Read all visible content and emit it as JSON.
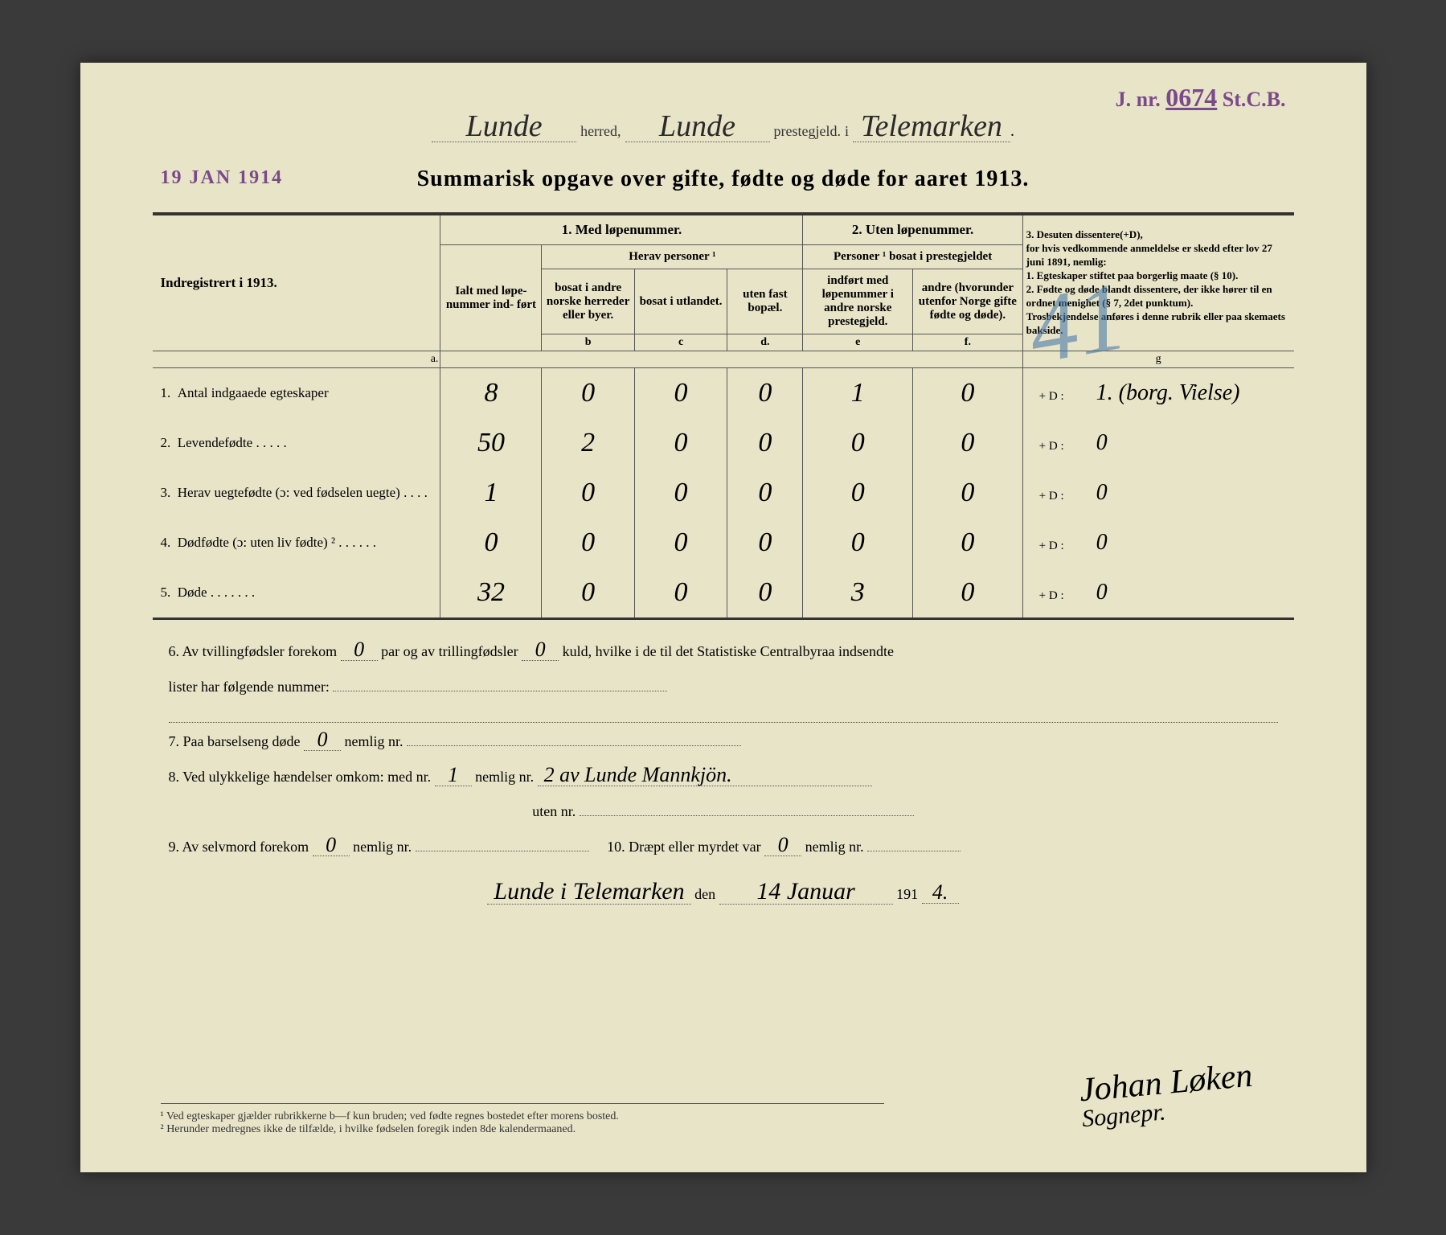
{
  "stamps": {
    "date": "19 JAN 1914",
    "jnr_label": "J. nr.",
    "jnr_num": "0674",
    "jnr_suffix": "St.C.B."
  },
  "header": {
    "herred": "Lunde",
    "herred_label": "herred,",
    "prestegjeld": "Lunde",
    "prestegjeld_label": "prestegjeld.",
    "i_label": "i",
    "amt": "Telemarken"
  },
  "title": "Summarisk opgave over gifte, fødte og døde for aaret 1913.",
  "table": {
    "left_header": "Indregistrert i 1913.",
    "group1": "1. Med løpenummer.",
    "group2": "2. Uten løpenummer.",
    "group3_title": "3. Desuten dissentere(+D),",
    "group3_text": "for hvis vedkommende anmeldelse er skedd efter lov 27 juni 1891, nemlig:\n1. Egteskaper stiftet paa borgerlig maate (§ 10).\n2. Fødte og døde blandt dissentere, der ikke hører til en ordnet menighet (§ 7, 2det punktum).\nTrosbekjendelse anføres i denne rubrik eller paa skemaets bakside.",
    "ialt_header": "Ialt\nmed løpe-\nnummer ind-\nført",
    "herav_header": "Herav personer ¹",
    "col_b": "bosat i andre norske herreder eller byer.",
    "col_c": "bosat i utlandet.",
    "col_d": "uten fast bopæl.",
    "personer_header": "Personer ¹\nbosat i prestegjeldet",
    "col_e": "indført med løpenummer i andre norske prestegjeld.",
    "col_f": "andre (hvorunder utenfor Norge gifte fødte og døde).",
    "letters": {
      "a": "a.",
      "b": "b",
      "c": "c",
      "d": "d.",
      "e": "e",
      "f": "f.",
      "g": "g"
    },
    "rows": [
      {
        "num": "1.",
        "label": "Antal indgaaede egteskaper",
        "a": "8",
        "b": "0",
        "c": "0",
        "d": "0",
        "e": "1",
        "f": "0",
        "g": "1. (borg. Vielse)"
      },
      {
        "num": "2.",
        "label": "Levendefødte . . . . .",
        "a": "50",
        "b": "2",
        "c": "0",
        "d": "0",
        "e": "0",
        "f": "0",
        "g": "0"
      },
      {
        "num": "3.",
        "label": "Herav uegtefødte (ɔ: ved fødselen uegte) . . . .",
        "a": "1",
        "b": "0",
        "c": "0",
        "d": "0",
        "e": "0",
        "f": "0",
        "g": "0"
      },
      {
        "num": "4.",
        "label": "Dødfødte (ɔ: uten liv fødte) ² . . . . . .",
        "a": "0",
        "b": "0",
        "c": "0",
        "d": "0",
        "e": "0",
        "f": "0",
        "g": "0"
      },
      {
        "num": "5.",
        "label": "Døde . . . . . . .",
        "a": "32",
        "b": "0",
        "c": "0",
        "d": "0",
        "e": "3",
        "f": "0",
        "g": "0"
      }
    ],
    "plus_d_label": "+ D :"
  },
  "bottom": {
    "line6_a": "6.   Av tvillingfødsler forekom",
    "line6_val1": "0",
    "line6_b": "par og av trillingfødsler",
    "line6_val2": "0",
    "line6_c": "kuld, hvilke i de til det Statistiske Centralbyraa indsendte",
    "line6_d": "lister har følgende nummer:",
    "line7_a": "7.   Paa barselseng døde",
    "line7_val": "0",
    "line7_b": "nemlig nr.",
    "line8_a": "8.   Ved ulykkelige hændelser omkom: med nr.",
    "line8_val1": "1",
    "line8_b": "nemlig nr.",
    "line8_val2": "2 av Lunde Mannkjön.",
    "line8_c": "uten nr.",
    "line9_a": "9.   Av selvmord forekom",
    "line9_val": "0",
    "line9_b": "nemlig nr.",
    "line10_a": "10.   Dræpt eller myrdet var",
    "line10_val": "0",
    "line10_b": "nemlig nr."
  },
  "signature_line": {
    "place": "Lunde i Telemarken",
    "den": "den",
    "date": "14 Januar",
    "year_prefix": "191",
    "year_suffix": "4."
  },
  "signature": {
    "name": "Johan Løken",
    "title": "Sognepr."
  },
  "footnotes": {
    "f1": "¹ Ved egteskaper gjælder rubrikkerne b—f kun bruden; ved fødte regnes bostedet efter morens bosted.",
    "f2": "² Herunder medregnes ikke de tilfælde, i hvilke fødselen foregik inden 8de kalendermaaned."
  },
  "blue_mark": "41"
}
